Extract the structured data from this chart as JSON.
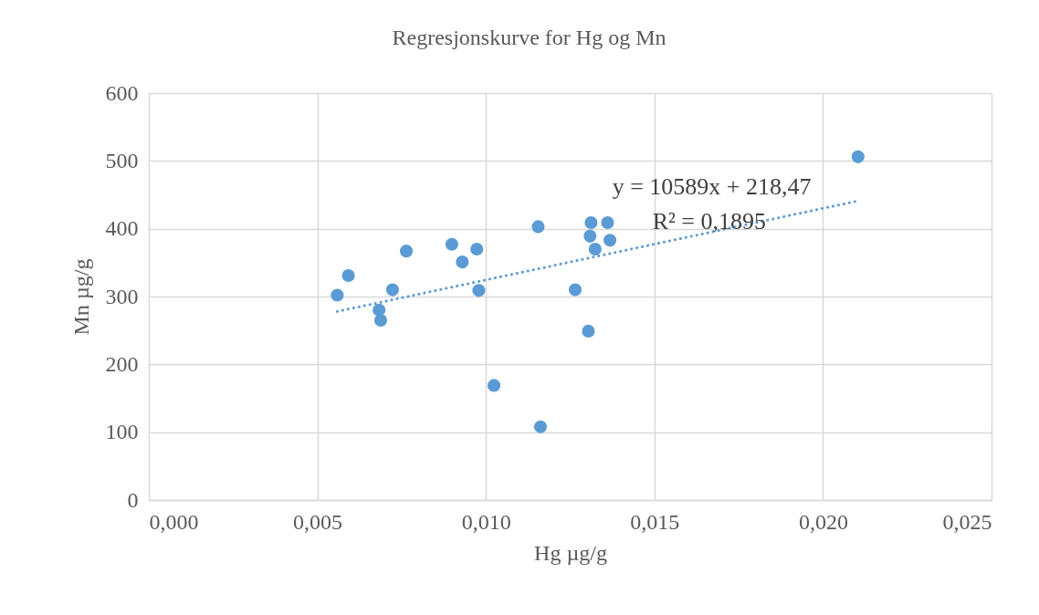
{
  "chart_data": {
    "type": "scatter",
    "title": "Regresjonskurve for Hg og Mn",
    "xlabel": "Hg µg/g",
    "ylabel": "Mn µg/g",
    "annotations": [
      "y = 10589x + 218,47",
      "R² = 0,1895"
    ],
    "series": [
      {
        "color": "#5b9bd5",
        "marker": "circle",
        "x": [
          0.00559,
          0.00592,
          0.00683,
          0.00688,
          0.00723,
          0.00764,
          0.00899,
          0.0093,
          0.00973,
          0.00979,
          0.01024,
          0.01155,
          0.01162,
          0.01265,
          0.01304,
          0.01309,
          0.01312,
          0.01324,
          0.01361,
          0.01368,
          0.02104
        ],
        "values": [
          302,
          331,
          280,
          265,
          310,
          367,
          377,
          351,
          370,
          309,
          169,
          403,
          108,
          310,
          249,
          389,
          409,
          370,
          409,
          383,
          506
        ]
      },
      {
        "type": "line",
        "color": "#5b9bd5",
        "line_style": "dotted",
        "x": [
          0.00559,
          0.02104
        ],
        "values": [
          278,
          441
        ]
      }
    ],
    "xlim": [
      0,
      0.025
    ],
    "xticks": [
      {
        "value": 0,
        "label": "0,000"
      },
      {
        "value": 0.005,
        "label": "0,005"
      },
      {
        "value": 0.01,
        "label": "0,010"
      },
      {
        "value": 0.015,
        "label": "0,015"
      },
      {
        "value": 0.02,
        "label": "0,020"
      },
      {
        "value": 0.025,
        "label": "0,025"
      }
    ],
    "ylim": [
      0,
      600
    ],
    "yticks": [
      0,
      100,
      200,
      300,
      400,
      500,
      600
    ],
    "grid": true
  }
}
